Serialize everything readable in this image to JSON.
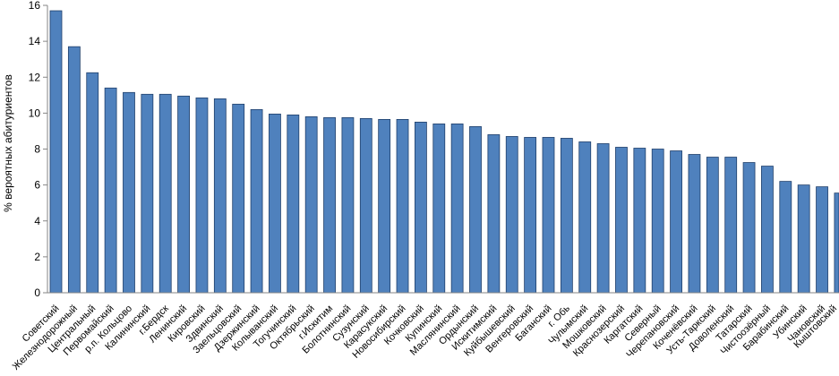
{
  "chart_data": {
    "type": "bar",
    "ylabel": "% вероятных абитуриентов",
    "xlabel": "",
    "ylim": [
      0,
      16
    ],
    "yticks": [
      0,
      2,
      4,
      6,
      8,
      10,
      12,
      14,
      16
    ],
    "grid": false,
    "legend": "none",
    "bar_color": "#4f81bd",
    "bar_stroke": "#1f3f6b",
    "categories": [
      "Советский",
      "Железнодорожный",
      "Центральный",
      "Первомайский",
      "р.п. Кольцово",
      "Калининский",
      "г.Бердск",
      "Ленинский",
      "Кировский",
      "Здвинский",
      "Заельцовский",
      "Дзержинский",
      "Колыванский",
      "Тогучинский",
      "Октябрьский",
      "г.Искитим",
      "Болотнинский",
      "Сузунский",
      "Карасукский",
      "Новосибирский",
      "Кочковский",
      "Купинский",
      "Маслянинский",
      "Ордынский",
      "Искитимский",
      "Куйбышевский",
      "Венгеровский",
      "Баганский",
      "г. Обь",
      "Чулымский",
      "Мошковский",
      "Краснозерский",
      "Каргатский",
      "Северный",
      "Черепановский",
      "Коченёвский",
      "Усть-Таркский",
      "Доволенский",
      "Татарский",
      "Чистоозёрный",
      "Барабинский",
      "Убинский",
      "Чановский",
      "Кыштовский"
    ],
    "values": [
      15.7,
      13.7,
      12.25,
      11.4,
      11.15,
      11.05,
      11.05,
      10.95,
      10.85,
      10.8,
      10.5,
      10.2,
      9.95,
      9.9,
      9.8,
      9.75,
      9.75,
      9.7,
      9.65,
      9.65,
      9.5,
      9.4,
      9.4,
      9.25,
      8.8,
      8.7,
      8.65,
      8.65,
      8.6,
      8.4,
      8.3,
      8.1,
      8.05,
      8.0,
      7.9,
      7.7,
      7.55,
      7.55,
      7.25,
      7.05,
      6.2,
      6.0,
      5.9,
      5.55
    ]
  }
}
